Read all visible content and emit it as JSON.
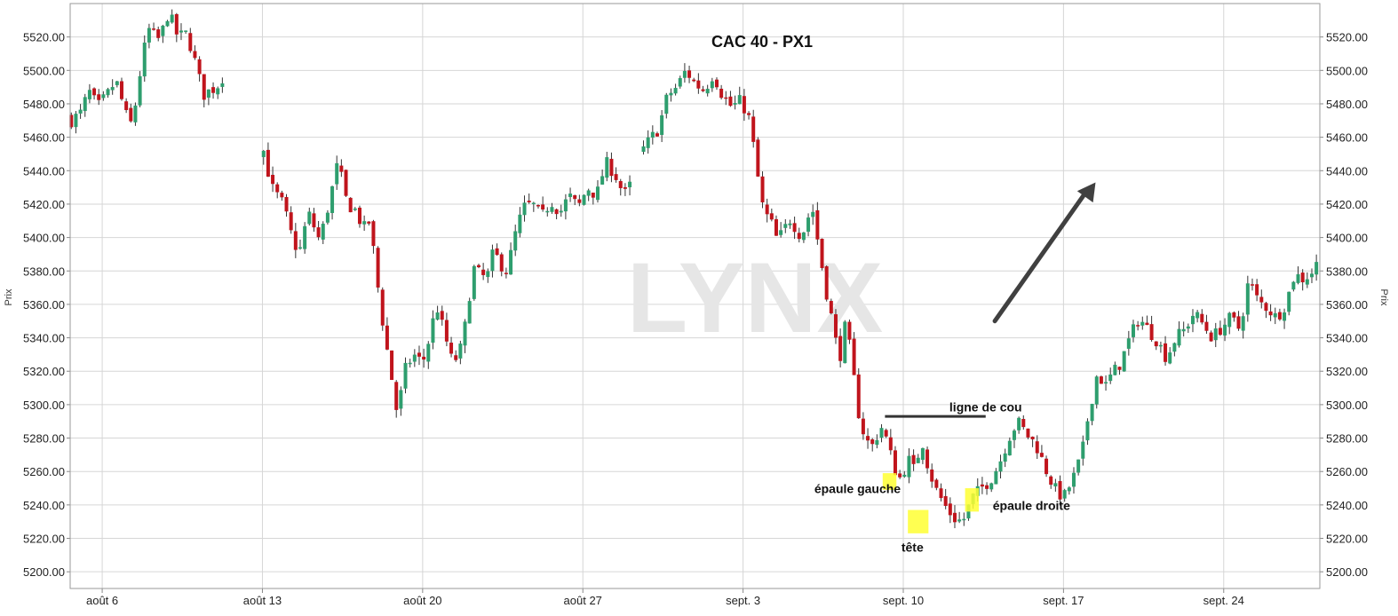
{
  "chart_data": {
    "type": "candlestick",
    "title": "CAC 40 - PX1",
    "watermark": "LYNX",
    "ylabel_left": "Prix",
    "ylabel_right": "Prix",
    "ylim": [
      5190,
      5540
    ],
    "y_ticks": [
      5200,
      5220,
      5240,
      5260,
      5280,
      5300,
      5320,
      5340,
      5360,
      5380,
      5400,
      5420,
      5440,
      5460,
      5480,
      5500,
      5520
    ],
    "y_tick_labels": [
      "5200.00",
      "5220.00",
      "5240.00",
      "5260.00",
      "5280.00",
      "5300.00",
      "5320.00",
      "5340.00",
      "5360.00",
      "5380.00",
      "5400.00",
      "5420.00",
      "5440.00",
      "5460.00",
      "5480.00",
      "5500.00",
      "5520.00"
    ],
    "x_ticks": [
      {
        "label": "août 6",
        "day": 0
      },
      {
        "label": "août 13",
        "day": 7
      },
      {
        "label": "août 20",
        "day": 14
      },
      {
        "label": "août 27",
        "day": 21
      },
      {
        "label": "sept. 3",
        "day": 28
      },
      {
        "label": "sept. 10",
        "day": 35
      },
      {
        "label": "sept. 17",
        "day": 42
      },
      {
        "label": "sept. 24",
        "day": 49
      }
    ],
    "x_range_days": [
      -1.4,
      53.2
    ],
    "grid": true,
    "colors": {
      "up": "#2e9e6e",
      "down": "#c0141c",
      "highlight": "#ffff33",
      "neckline": "#333333",
      "arrow": "#404040"
    },
    "price_path": [
      [
        -1.35,
        5470
      ],
      [
        -0.9,
        5475
      ],
      [
        -0.6,
        5488
      ],
      [
        -0.2,
        5478
      ],
      [
        0.2,
        5485
      ],
      [
        0.6,
        5494
      ],
      [
        0.9,
        5480
      ],
      [
        1.2,
        5466
      ],
      [
        1.4,
        5475
      ],
      [
        1.6,
        5494
      ],
      [
        2.0,
        5525
      ],
      [
        2.5,
        5518
      ],
      [
        2.9,
        5535
      ],
      [
        3.3,
        5520
      ],
      [
        3.7,
        5522
      ],
      [
        4.0,
        5508
      ],
      [
        4.2,
        5498
      ],
      [
        4.4,
        5485
      ],
      [
        4.7,
        5488
      ],
      [
        5.0,
        5490
      ],
      [
        5.3,
        5497
      ],
      [
        7.0,
        5455
      ],
      [
        7.4,
        5430
      ],
      [
        7.9,
        5420
      ],
      [
        8.3,
        5400
      ],
      [
        8.6,
        5390
      ],
      [
        9.0,
        5415
      ],
      [
        9.5,
        5398
      ],
      [
        9.9,
        5420
      ],
      [
        10.3,
        5445
      ],
      [
        10.7,
        5420
      ],
      [
        11.1,
        5416
      ],
      [
        11.4,
        5405
      ],
      [
        11.7,
        5410
      ],
      [
        12.0,
        5375
      ],
      [
        12.3,
        5345
      ],
      [
        12.6,
        5320
      ],
      [
        12.9,
        5293
      ],
      [
        13.2,
        5320
      ],
      [
        13.6,
        5330
      ],
      [
        14.0,
        5325
      ],
      [
        14.3,
        5340
      ],
      [
        14.6,
        5360
      ],
      [
        15.0,
        5340
      ],
      [
        15.3,
        5325
      ],
      [
        15.6,
        5330
      ],
      [
        15.9,
        5350
      ],
      [
        16.2,
        5382
      ],
      [
        16.5,
        5378
      ],
      [
        16.8,
        5375
      ],
      [
        17.1,
        5392
      ],
      [
        17.4,
        5384
      ],
      [
        17.7,
        5380
      ],
      [
        18.0,
        5400
      ],
      [
        18.4,
        5418
      ],
      [
        18.8,
        5420
      ],
      [
        19.2,
        5412
      ],
      [
        19.6,
        5422
      ],
      [
        20.0,
        5415
      ],
      [
        20.4,
        5425
      ],
      [
        20.8,
        5418
      ],
      [
        21.2,
        5430
      ],
      [
        21.6,
        5425
      ],
      [
        22.0,
        5445
      ],
      [
        22.4,
        5438
      ],
      [
        22.8,
        5425
      ],
      [
        23.1,
        5432
      ],
      [
        23.5,
        5450
      ],
      [
        23.9,
        5458
      ],
      [
        24.3,
        5465
      ],
      [
        24.7,
        5485
      ],
      [
        25.1,
        5490
      ],
      [
        25.5,
        5500
      ],
      [
        25.9,
        5492
      ],
      [
        26.3,
        5488
      ],
      [
        26.7,
        5498
      ],
      [
        27.1,
        5485
      ],
      [
        27.5,
        5478
      ],
      [
        27.9,
        5482
      ],
      [
        28.3,
        5470
      ],
      [
        28.6,
        5440
      ],
      [
        28.9,
        5415
      ],
      [
        29.2,
        5410
      ],
      [
        29.5,
        5398
      ],
      [
        29.8,
        5405
      ],
      [
        30.1,
        5412
      ],
      [
        30.4,
        5402
      ],
      [
        30.7,
        5405
      ],
      [
        31.0,
        5420
      ],
      [
        31.3,
        5395
      ],
      [
        31.6,
        5370
      ],
      [
        31.9,
        5350
      ],
      [
        32.2,
        5326
      ],
      [
        32.5,
        5350
      ],
      [
        32.8,
        5320
      ],
      [
        33.1,
        5290
      ],
      [
        33.4,
        5278
      ],
      [
        33.7,
        5275
      ],
      [
        34.0,
        5288
      ],
      [
        34.3,
        5278
      ],
      [
        34.6,
        5262
      ],
      [
        34.9,
        5255
      ],
      [
        35.2,
        5268
      ],
      [
        35.5,
        5260
      ],
      [
        35.8,
        5280
      ],
      [
        36.1,
        5262
      ],
      [
        36.4,
        5250
      ],
      [
        36.8,
        5240
      ],
      [
        37.2,
        5232
      ],
      [
        37.6,
        5230
      ],
      [
        38.0,
        5244
      ],
      [
        38.4,
        5250
      ],
      [
        38.8,
        5255
      ],
      [
        39.2,
        5265
      ],
      [
        39.6,
        5280
      ],
      [
        40.0,
        5290
      ],
      [
        40.4,
        5282
      ],
      [
        40.8,
        5276
      ],
      [
        41.2,
        5262
      ],
      [
        41.6,
        5250
      ],
      [
        42.0,
        5244
      ],
      [
        42.4,
        5255
      ],
      [
        42.8,
        5270
      ],
      [
        43.1,
        5295
      ],
      [
        43.5,
        5320
      ],
      [
        43.8,
        5310
      ],
      [
        44.1,
        5318
      ],
      [
        44.5,
        5325
      ],
      [
        44.9,
        5340
      ],
      [
        45.3,
        5352
      ],
      [
        45.7,
        5345
      ],
      [
        46.1,
        5338
      ],
      [
        46.5,
        5328
      ],
      [
        46.9,
        5340
      ],
      [
        47.3,
        5345
      ],
      [
        47.7,
        5355
      ],
      [
        48.1,
        5348
      ],
      [
        48.5,
        5340
      ],
      [
        48.9,
        5346
      ],
      [
        49.3,
        5352
      ],
      [
        49.7,
        5345
      ],
      [
        50.1,
        5375
      ],
      [
        50.5,
        5362
      ],
      [
        50.9,
        5358
      ],
      [
        51.3,
        5352
      ],
      [
        51.7,
        5360
      ],
      [
        52.1,
        5378
      ],
      [
        52.5,
        5375
      ],
      [
        52.9,
        5380
      ],
      [
        53.2,
        5388
      ]
    ],
    "annotations": [
      {
        "text": "épaule gauche",
        "day": 33.0,
        "price": 5247
      },
      {
        "text": "tête",
        "day": 35.4,
        "price": 5212
      },
      {
        "text": "épaule droite",
        "day": 40.6,
        "price": 5237
      },
      {
        "text": "ligne de cou",
        "day": 38.6,
        "price": 5296
      }
    ],
    "highlights": [
      {
        "name": "left-shoulder",
        "day_range": [
          34.1,
          34.7
        ],
        "price_range": [
          5249,
          5259
        ]
      },
      {
        "name": "head",
        "day_range": [
          35.2,
          36.1
        ],
        "price_range": [
          5223,
          5237
        ]
      },
      {
        "name": "right-shoulder",
        "day_range": [
          37.7,
          38.3
        ],
        "price_range": [
          5236,
          5250
        ]
      }
    ],
    "neckline": {
      "day_range": [
        34.2,
        38.6
      ],
      "price": 5293
    },
    "arrow": {
      "from": [
        39.0,
        5350
      ],
      "to": [
        43.4,
        5433
      ]
    }
  }
}
